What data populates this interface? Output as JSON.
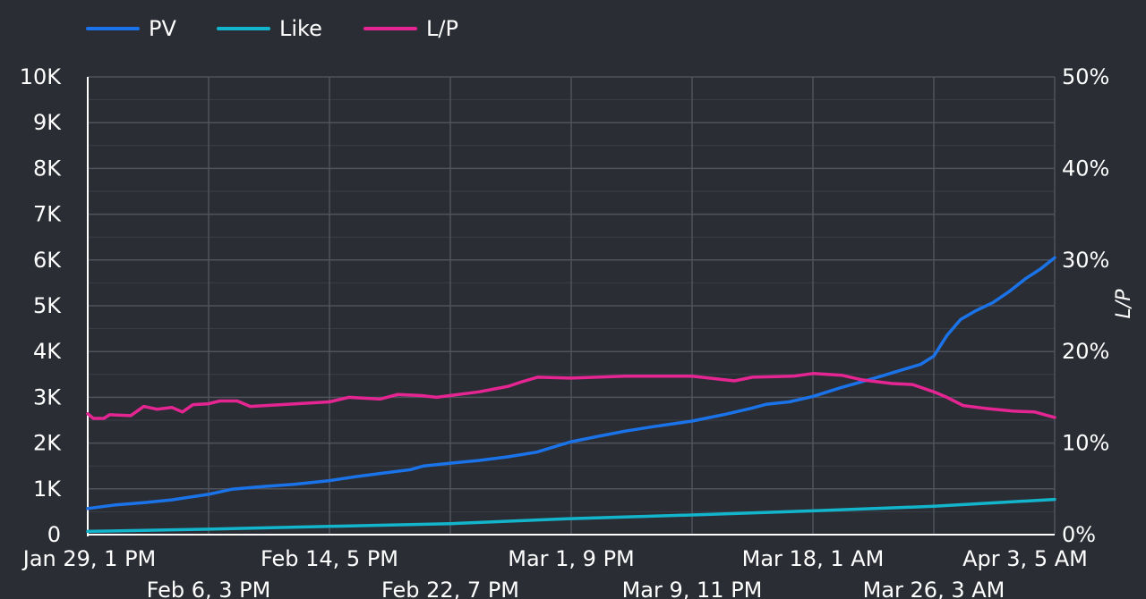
{
  "chart_data": {
    "type": "line",
    "y_left_ticks": [
      "0",
      "1K",
      "2K",
      "3K",
      "4K",
      "5K",
      "6K",
      "7K",
      "8K",
      "9K",
      "10K"
    ],
    "y_left_range": [
      0,
      10000
    ],
    "y_right_ticks": [
      "0%",
      "10%",
      "20%",
      "30%",
      "40%",
      "50%"
    ],
    "y_right_range": [
      0,
      50
    ],
    "y_right_label": "L/P",
    "x_range": [
      "2024-01-29T13:00",
      "2024-04-03T05:00"
    ],
    "x_ticks_top": [
      {
        "label": "Jan 29, 1 PM",
        "x": "2024-01-29T13:00"
      },
      {
        "label": "Feb 14, 5 PM",
        "x": "2024-02-14T17:00"
      },
      {
        "label": "Mar 1, 9 PM",
        "x": "2024-03-01T21:00"
      },
      {
        "label": "Mar 18, 1 AM",
        "x": "2024-03-18T01:00"
      },
      {
        "label": "Apr 3, 5 AM",
        "x": "2024-04-03T05:00"
      }
    ],
    "x_ticks_bottom": [
      {
        "label": "Feb 6, 3 PM",
        "x": "2024-02-06T15:00"
      },
      {
        "label": "Feb 22, 7 PM",
        "x": "2024-02-22T19:00"
      },
      {
        "label": "Mar 9, 11 PM",
        "x": "2024-03-09T23:00"
      },
      {
        "label": "Mar 26, 3 AM",
        "x": "2024-03-26T03:00"
      }
    ],
    "grid": true,
    "legend_position": "top-left",
    "series": [
      {
        "name": "PV",
        "axis": "left",
        "color": "#1a73e8",
        "points": [
          [
            "2024-01-29T13:00",
            570
          ],
          [
            "2024-01-31T10:00",
            650
          ],
          [
            "2024-02-02T07:00",
            700
          ],
          [
            "2024-02-04T04:00",
            760
          ],
          [
            "2024-02-06T15:00",
            880
          ],
          [
            "2024-02-08T04:00",
            990
          ],
          [
            "2024-02-10T06:00",
            1050
          ],
          [
            "2024-02-12T08:00",
            1100
          ],
          [
            "2024-02-14T17:00",
            1180
          ],
          [
            "2024-02-16T13:00",
            1270
          ],
          [
            "2024-02-18T05:00",
            1340
          ],
          [
            "2024-02-20T03:00",
            1420
          ],
          [
            "2024-02-21T00:00",
            1500
          ],
          [
            "2024-02-22T19:00",
            1560
          ],
          [
            "2024-02-24T16:00",
            1620
          ],
          [
            "2024-02-26T15:00",
            1700
          ],
          [
            "2024-02-28T13:00",
            1800
          ],
          [
            "2024-03-01T21:00",
            2030
          ],
          [
            "2024-03-03T14:00",
            2140
          ],
          [
            "2024-03-05T11:00",
            2260
          ],
          [
            "2024-03-07T09:00",
            2360
          ],
          [
            "2024-03-09T23:00",
            2480
          ],
          [
            "2024-03-12T01:00",
            2620
          ],
          [
            "2024-03-13T22:00",
            2760
          ],
          [
            "2024-03-14T23:00",
            2850
          ],
          [
            "2024-03-16T11:00",
            2900
          ],
          [
            "2024-03-18T01:00",
            3020
          ],
          [
            "2024-03-19T22:00",
            3210
          ],
          [
            "2024-03-22T04:00",
            3420
          ],
          [
            "2024-03-24T08:00",
            3630
          ],
          [
            "2024-03-25T06:00",
            3720
          ],
          [
            "2024-03-26T03:00",
            3900
          ],
          [
            "2024-03-27T00:00",
            4350
          ],
          [
            "2024-03-27T22:00",
            4700
          ],
          [
            "2024-03-28T21:00",
            4880
          ],
          [
            "2024-03-30T02:00",
            5070
          ],
          [
            "2024-03-31T03:00",
            5300
          ],
          [
            "2024-04-01T07:00",
            5600
          ],
          [
            "2024-04-02T06:00",
            5800
          ],
          [
            "2024-04-03T05:00",
            6050
          ]
        ]
      },
      {
        "name": "Like",
        "axis": "left",
        "color": "#12b5cb",
        "points": [
          [
            "2024-01-29T13:00",
            70
          ],
          [
            "2024-02-06T15:00",
            120
          ],
          [
            "2024-02-14T17:00",
            180
          ],
          [
            "2024-02-22T19:00",
            240
          ],
          [
            "2024-03-01T21:00",
            350
          ],
          [
            "2024-03-09T23:00",
            430
          ],
          [
            "2024-03-18T01:00",
            520
          ],
          [
            "2024-03-26T03:00",
            620
          ],
          [
            "2024-04-03T05:00",
            770
          ]
        ]
      },
      {
        "name": "L/P",
        "axis": "right",
        "color": "#e52592",
        "points": [
          [
            "2024-01-29T13:00",
            13.2
          ],
          [
            "2024-01-29T22:00",
            12.7
          ],
          [
            "2024-01-30T15:00",
            12.7
          ],
          [
            "2024-01-31T00:00",
            13.1
          ],
          [
            "2024-02-01T10:00",
            13.0
          ],
          [
            "2024-02-02T07:00",
            14.0
          ],
          [
            "2024-02-03T04:00",
            13.7
          ],
          [
            "2024-02-04T04:00",
            13.9
          ],
          [
            "2024-02-04T21:00",
            13.4
          ],
          [
            "2024-02-05T14:00",
            14.2
          ],
          [
            "2024-02-06T15:00",
            14.3
          ],
          [
            "2024-02-07T09:00",
            14.6
          ],
          [
            "2024-02-08T13:00",
            14.6
          ],
          [
            "2024-02-09T10:00",
            14.0
          ],
          [
            "2024-02-14T17:00",
            14.5
          ],
          [
            "2024-02-16T00:00",
            15.0
          ],
          [
            "2024-02-18T02:00",
            14.8
          ],
          [
            "2024-02-19T06:00",
            15.3
          ],
          [
            "2024-02-20T19:00",
            15.2
          ],
          [
            "2024-02-21T21:00",
            15.0
          ],
          [
            "2024-02-24T17:00",
            15.6
          ],
          [
            "2024-02-26T16:00",
            16.2
          ],
          [
            "2024-02-27T14:00",
            16.7
          ],
          [
            "2024-02-28T15:00",
            17.2
          ],
          [
            "2024-03-01T21:00",
            17.1
          ],
          [
            "2024-03-05T12:00",
            17.3
          ],
          [
            "2024-03-09T23:00",
            17.3
          ],
          [
            "2024-03-12T19:00",
            16.8
          ],
          [
            "2024-03-14T00:00",
            17.2
          ],
          [
            "2024-03-16T17:00",
            17.3
          ],
          [
            "2024-03-18T01:00",
            17.6
          ],
          [
            "2024-03-20T00:00",
            17.4
          ],
          [
            "2024-03-21T08:00",
            16.9
          ],
          [
            "2024-03-23T08:00",
            16.5
          ],
          [
            "2024-03-24T17:00",
            16.4
          ],
          [
            "2024-03-26T03:00",
            15.6
          ],
          [
            "2024-03-27T00:00",
            15.0
          ],
          [
            "2024-03-28T02:00",
            14.1
          ],
          [
            "2024-03-29T13:00",
            13.8
          ],
          [
            "2024-03-31T09:00",
            13.5
          ],
          [
            "2024-04-01T21:00",
            13.4
          ],
          [
            "2024-04-03T05:00",
            12.8
          ]
        ]
      }
    ]
  }
}
